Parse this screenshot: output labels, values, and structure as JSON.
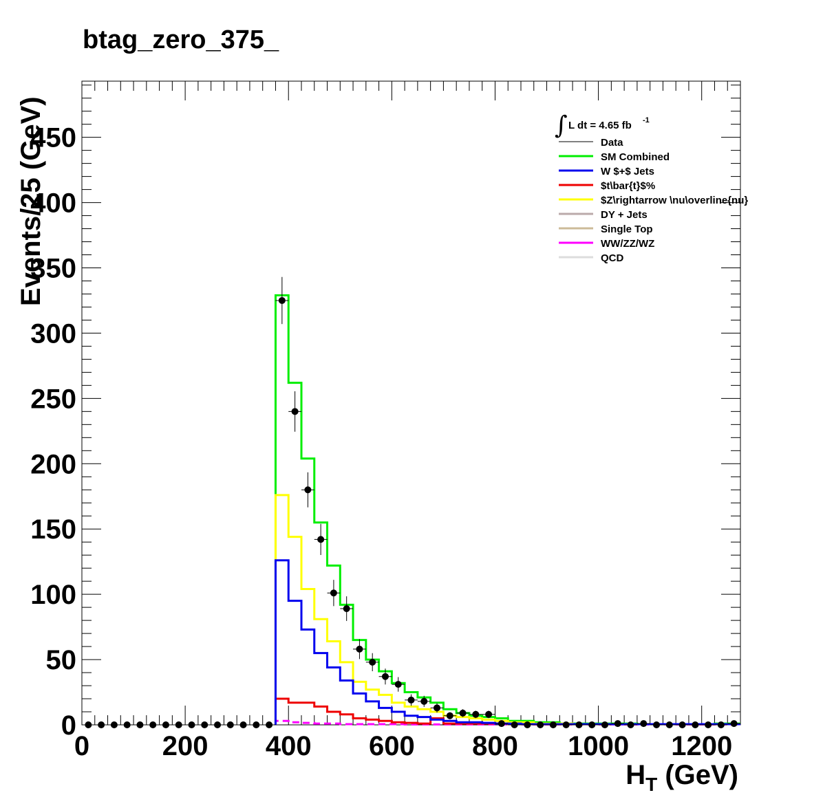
{
  "chart_data": {
    "type": "histogram",
    "title": "btag_zero_375_",
    "xlabel": "H_T (GeV)",
    "ylabel": "Events/25 (GeV)",
    "xlim": [
      0,
      1275
    ],
    "ylim": [
      0,
      493
    ],
    "bin_width": 25,
    "x_ticks": [
      0,
      200,
      400,
      600,
      800,
      1000,
      1200
    ],
    "x_tick_labels": [
      "0",
      "200",
      "400",
      "600",
      "800",
      "1000",
      "1200"
    ],
    "y_ticks": [
      0,
      50,
      100,
      150,
      200,
      250,
      300,
      350,
      400,
      450
    ],
    "y_tick_labels": [
      "0",
      "50",
      "100",
      "150",
      "200",
      "250",
      "300",
      "350",
      "400",
      "450"
    ],
    "grid": false,
    "legend_position": "top-right",
    "luminosity_label": "L dt = 4.65 fb",
    "luminosity_exponent": "-1",
    "bin_edges_start": 375,
    "series": [
      {
        "name": "SM Combined",
        "color": "#00ee00",
        "values": [
          329,
          262,
          204,
          155,
          122,
          92,
          65,
          50,
          41,
          32,
          25,
          21,
          17,
          12,
          9,
          7,
          6,
          5,
          3,
          3,
          2,
          2,
          1,
          1,
          1,
          1,
          1,
          1,
          0.5,
          0.5,
          0.5,
          0.5,
          0.5,
          0.5,
          1,
          1
        ]
      },
      {
        "name": "W $+$ Jets",
        "color": "#0000ee",
        "values": [
          126,
          95,
          73,
          55,
          44,
          34,
          24,
          18,
          13,
          10,
          7,
          6,
          4,
          3,
          2,
          2,
          1.5,
          1,
          1,
          0.5,
          0.5,
          0.5,
          0.5,
          0.5,
          0.5,
          0.5,
          0.5,
          0.5,
          0.5,
          0.5,
          0.5,
          0.5,
          0.5,
          0.5,
          0.5,
          0.5
        ]
      },
      {
        "name": "$t\\bar{t}$%",
        "color": "#ee0000",
        "values": [
          20,
          17,
          17,
          14,
          10,
          8,
          5,
          4,
          3,
          2,
          1.5,
          1,
          5,
          1,
          1,
          1,
          1,
          1,
          0.5,
          0.5,
          0.5,
          0.5,
          0.5,
          0.5,
          0.5,
          0.5,
          0.5,
          0.5,
          0.5,
          0.5,
          0.5,
          0.5,
          0.5,
          0.5,
          0.5,
          0.5
        ]
      },
      {
        "name": "$Z\\rightarrow \\nu\\overline{nu}",
        "color": "#ffff00",
        "values": [
          176,
          144,
          104,
          81,
          64,
          48,
          33,
          27,
          23,
          17,
          14,
          12,
          10,
          7,
          6,
          5,
          4,
          3,
          2,
          2,
          1,
          1,
          1,
          0.5,
          0.5,
          0.5,
          0.5,
          0.5,
          0.5,
          0.5,
          0.5,
          0.5,
          0.5,
          0.5,
          0.5,
          0.5
        ]
      },
      {
        "name": "DY + Jets",
        "color": "#bbaaaa",
        "values": []
      },
      {
        "name": "Single Top",
        "color": "#ccbb99",
        "values": []
      },
      {
        "name": "WW/ZZ/WZ",
        "color": "#ff00ff",
        "values": [
          3,
          2,
          1.5,
          1,
          1,
          0.5,
          0.5,
          0.5,
          0.5,
          0.5,
          0.3,
          0.3,
          0.3,
          0.3,
          0.3,
          0.3,
          0.3,
          0.3,
          0.3,
          0.3,
          0.3,
          0.3,
          0.3,
          0.3,
          0.3,
          0.3,
          0.3,
          0.3,
          0.3,
          0.3,
          0.3,
          0.3,
          0.3,
          0.3,
          0.3,
          0.3
        ]
      },
      {
        "name": "QCD",
        "color": "#dddddd",
        "values": []
      }
    ],
    "data": {
      "name": "Data",
      "color": "#000000",
      "x": [
        12.5,
        37.5,
        62.5,
        87.5,
        112.5,
        137.5,
        162.5,
        187.5,
        212.5,
        237.5,
        262.5,
        287.5,
        312.5,
        337.5,
        362.5,
        387.5,
        412.5,
        437.5,
        462.5,
        487.5,
        512.5,
        537.5,
        562.5,
        587.5,
        612.5,
        637.5,
        662.5,
        687.5,
        712.5,
        737.5,
        762.5,
        787.5,
        812.5,
        837.5,
        862.5,
        887.5,
        912.5,
        937.5,
        962.5,
        987.5,
        1012.5,
        1037.5,
        1062.5,
        1087.5,
        1112.5,
        1137.5,
        1162.5,
        1187.5,
        1212.5,
        1237.5,
        1262.5
      ],
      "y": [
        0,
        0,
        0,
        0,
        0,
        0,
        0,
        0,
        0,
        0,
        0,
        0,
        0,
        0,
        0,
        325,
        240,
        180,
        142,
        101,
        89,
        58,
        48,
        37,
        31,
        19,
        18,
        13,
        7,
        9,
        8,
        8,
        1,
        0,
        0,
        0,
        0,
        0,
        0,
        0,
        0,
        1,
        0,
        1,
        0,
        0,
        0,
        0,
        0,
        0,
        1
      ]
    }
  }
}
